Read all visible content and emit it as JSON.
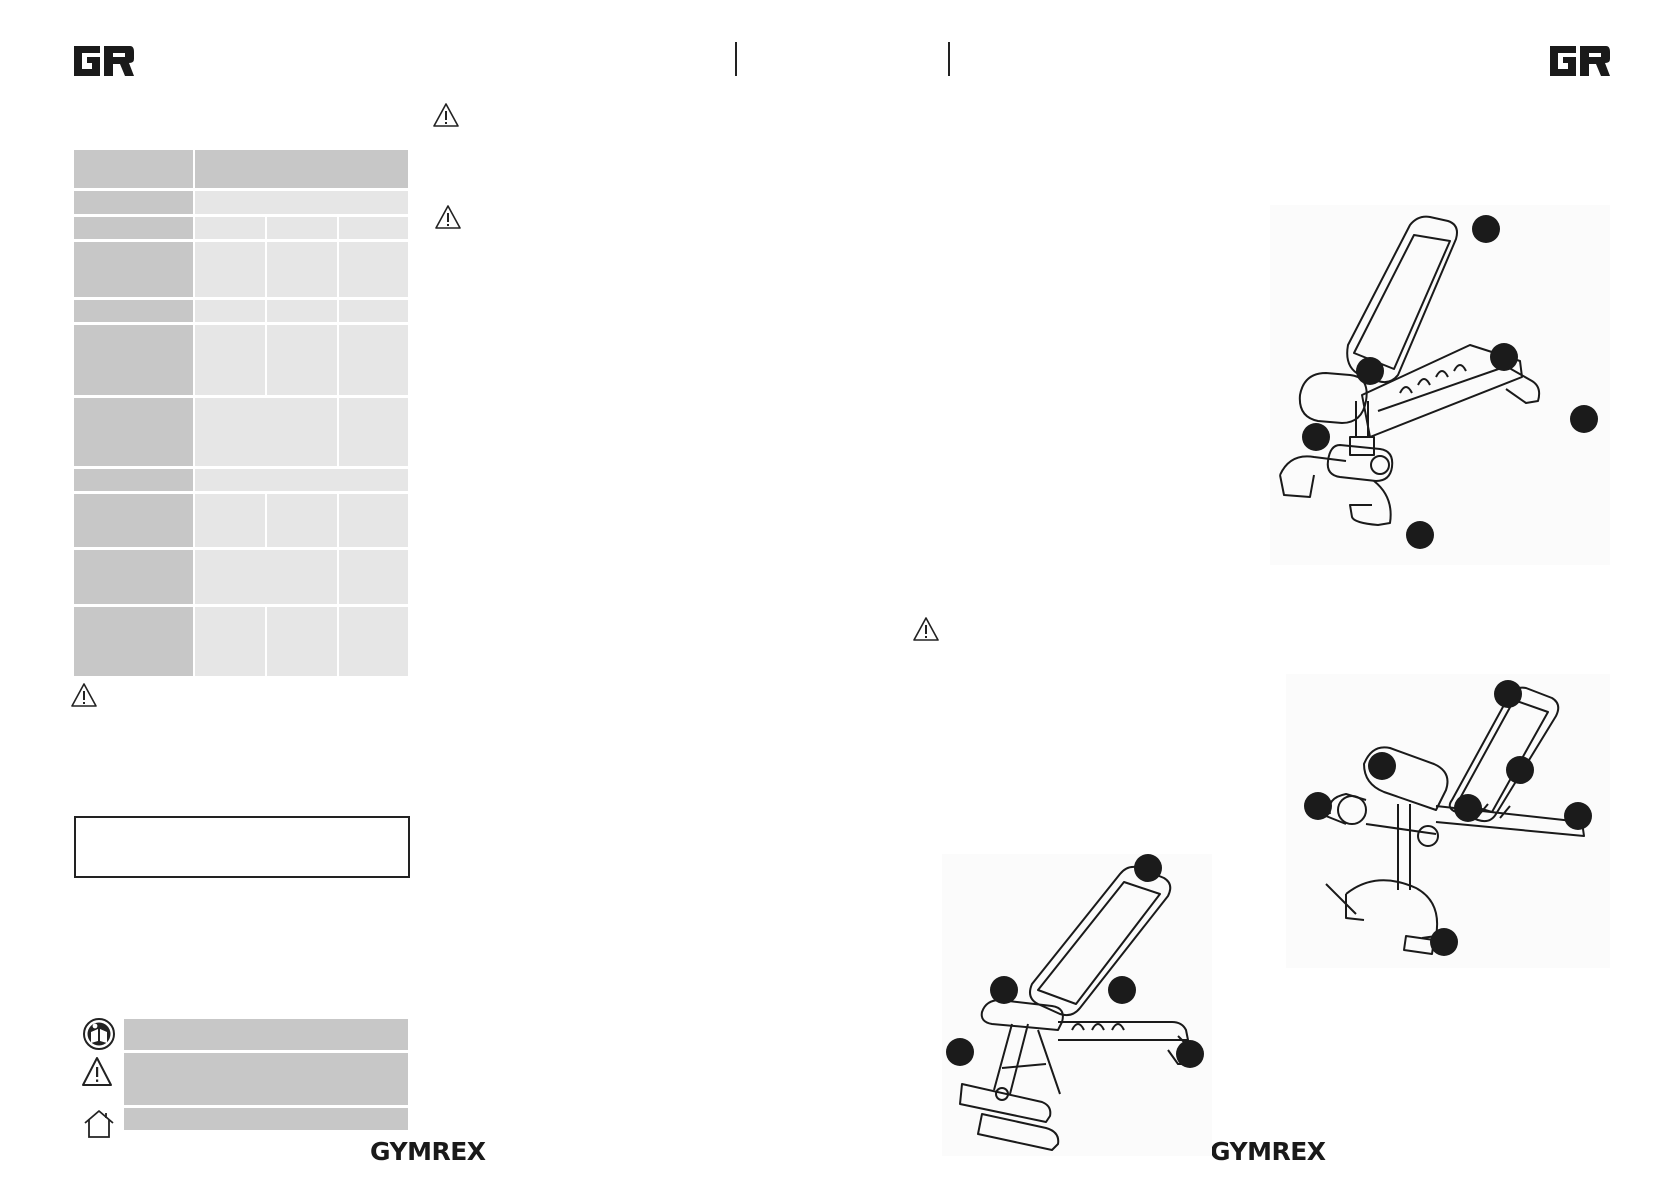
{
  "brand": {
    "wordmark_left": "GYMREX",
    "wordmark_right": "GYMREX",
    "logo_icon": "gr-monogram-icon"
  },
  "icons": {
    "warning": "warning-triangle-icon",
    "read_manual": "read-manual-icon",
    "house": "indoor-use-house-icon"
  },
  "colors": {
    "table_dark": "#c7c7c7",
    "table_light": "#e6e6e6",
    "legend_bar": "#c7c7c7",
    "callout_dot": "#1b1b1b"
  }
}
